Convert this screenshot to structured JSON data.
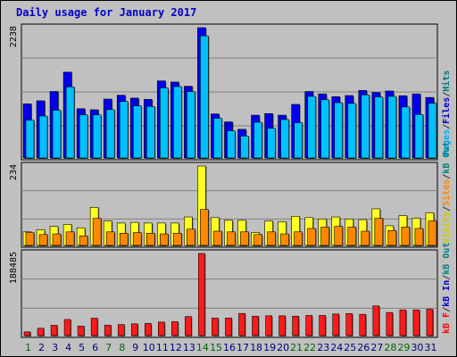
{
  "chart_data": {
    "type": "bar",
    "title": "Daily usage for January 2017",
    "days": [
      "1",
      "2",
      "3",
      "4",
      "5",
      "6",
      "7",
      "8",
      "9",
      "10",
      "11",
      "12",
      "13",
      "14",
      "15",
      "16",
      "17",
      "18",
      "19",
      "20",
      "21",
      "22",
      "23",
      "24",
      "25",
      "26",
      "27",
      "28",
      "29",
      "30",
      "31"
    ],
    "weekend_day_color": "#006600",
    "weekday_day_color": "#000080",
    "weekend_days": [
      "1",
      "7",
      "8",
      "14",
      "15",
      "21",
      "22",
      "28",
      "29"
    ],
    "panels": [
      {
        "id": "hits",
        "max_label": "2238",
        "ymax": 2238,
        "legend": [
          {
            "text": "Pages",
            "color": "#00aaff"
          },
          {
            "text": "/",
            "color": "#333333"
          },
          {
            "text": "Files",
            "color": "#0000cc"
          },
          {
            "text": "/",
            "color": "#333333"
          },
          {
            "text": "Hits",
            "color": "#007777"
          }
        ],
        "series": [
          {
            "name": "Hits",
            "color": "#0000ee",
            "values": [
              930,
              982,
              1142,
              1474,
              846,
              828,
              1012,
              1078,
              1028,
              1006,
              1324,
              1304,
              1232,
              2238,
              756,
              620,
              492,
              735,
              762,
              735,
              920,
              1142,
              1100,
              1052,
              1072,
              1160,
              1125,
              1150,
              1068,
              1100,
              1040
            ]
          },
          {
            "name": "Files",
            "color": "#00c0ff",
            "values": [
              650,
              720,
              820,
              1222,
              740,
              740,
              830,
              970,
              895,
              885,
              1204,
              1226,
              1140,
              2098,
              680,
              466,
              376,
              614,
              510,
              660,
              606,
              1058,
              1000,
              950,
              936,
              1084,
              1048,
              1058,
              876,
              746,
              940
            ]
          }
        ]
      },
      {
        "id": "visits",
        "max_label": "234",
        "ymax": 234,
        "legend": [
          {
            "text": "Visits",
            "color": "#cccc00"
          },
          {
            "text": "/",
            "color": "#333333"
          },
          {
            "text": "Sites",
            "color": "#ff8800"
          },
          {
            "text": "/",
            "color": "#333333"
          },
          {
            "text": "kB Out",
            "color": "#008080"
          }
        ],
        "series": [
          {
            "name": "Visits",
            "color": "#ffff22",
            "values": [
              40,
              46,
              56,
              62,
              52,
              112,
              72,
              66,
              68,
              66,
              66,
              66,
              84,
              234,
              82,
              74,
              74,
              38,
              72,
              70,
              86,
              82,
              78,
              84,
              78,
              76,
              108,
              58,
              88,
              80,
              96
            ]
          },
          {
            "name": "Sites",
            "color": "#ff8800",
            "values": [
              38,
              32,
              34,
              40,
              28,
              80,
              40,
              36,
              38,
              36,
              34,
              36,
              48,
              106,
              42,
              40,
              40,
              32,
              40,
              34,
              40,
              50,
              54,
              56,
              54,
              42,
              80,
              44,
              54,
              50,
              72
            ]
          }
        ]
      },
      {
        "id": "kbytes",
        "max_label": "188485",
        "ymax": 188485,
        "legend": [
          {
            "text": "kB F",
            "color": "#ff0000"
          },
          {
            "text": "/",
            "color": "#333333"
          },
          {
            "text": "kB In",
            "color": "#0000cc"
          },
          {
            "text": "/",
            "color": "#333333"
          },
          {
            "text": "kB Out",
            "color": "#008080"
          }
        ],
        "series": [
          {
            "name": "kB F",
            "color": "#ff1a1a",
            "values": [
              8500,
              16800,
              23500,
              37000,
              21800,
              40000,
              24000,
              25200,
              26900,
              27800,
              31100,
              31900,
              43700,
              188485,
              40300,
              40300,
              50800,
              44500,
              45400,
              45400,
              44500,
              46200,
              46200,
              49600,
              50400,
              48700,
              68100,
              53000,
              58900,
              58900,
              60500
            ]
          }
        ]
      }
    ]
  }
}
